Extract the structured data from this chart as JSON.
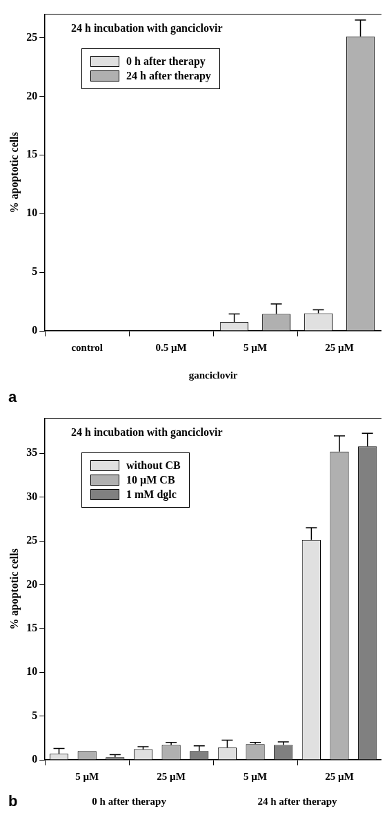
{
  "chart_data": [
    {
      "type": "bar",
      "title": "24 h incubation with ganciclovir",
      "xlabel": "ganciclovir",
      "ylabel": "% apoptotic cells",
      "categories": [
        "control",
        "0.5 µM",
        "5 µM",
        "25 µM"
      ],
      "series": [
        {
          "name": "0 h after therapy",
          "color": "#e0e0e0",
          "values": [
            0,
            0,
            0.76,
            1.5
          ],
          "errors": [
            null,
            null,
            [
              0.76,
              1.45
            ],
            [
              1.5,
              1.8
            ]
          ]
        },
        {
          "name": "24 h after therapy",
          "color": "#b0b0b0",
          "values": [
            0,
            0,
            1.45,
            25.1
          ],
          "errors": [
            null,
            null,
            [
              1.45,
              2.3
            ],
            [
              25.1,
              26.5
            ]
          ]
        }
      ],
      "ylim": [
        0,
        27
      ],
      "yticks": [
        0,
        5,
        10,
        15,
        20,
        25
      ],
      "grid": false,
      "legend": "top left",
      "annotations": [
        "a"
      ]
    },
    {
      "type": "bar",
      "title": "24 h incubation with ganciclovir",
      "ylabel": "% apoptotic cells",
      "categories": [
        "5 µM",
        "25 µM",
        "5 µM",
        "25 µM"
      ],
      "series": [
        {
          "name": "without CB",
          "color": "#e0e0e0",
          "values": [
            0.7,
            1.2,
            1.4,
            25.1
          ],
          "errors": [
            [
              0.7,
              1.3
            ],
            [
              1.2,
              1.5
            ],
            [
              1.4,
              2.25
            ],
            [
              25.1,
              26.5
            ]
          ]
        },
        {
          "name": "10 µM CB",
          "color": "#b0b0b0",
          "values": [
            1.0,
            1.7,
            1.8,
            35.2
          ],
          "errors": [
            null,
            [
              1.7,
              2.0
            ],
            [
              1.8,
              2.0
            ],
            [
              35.2,
              37.0
            ]
          ]
        },
        {
          "name": "1 mM dglc",
          "color": "#808080",
          "values": [
            0.3,
            1.0,
            1.7,
            35.8
          ],
          "errors": [
            [
              0.3,
              0.6
            ],
            [
              1.0,
              1.6
            ],
            [
              1.7,
              2.05
            ],
            [
              35.8,
              37.3
            ]
          ]
        }
      ],
      "ylim": [
        0,
        39
      ],
      "yticks": [
        0,
        5,
        10,
        15,
        20,
        25,
        30,
        35
      ],
      "grid": false,
      "legend": "top left",
      "annotations": [
        "0 h after therapy",
        "24 h after therapy",
        "b"
      ]
    }
  ]
}
